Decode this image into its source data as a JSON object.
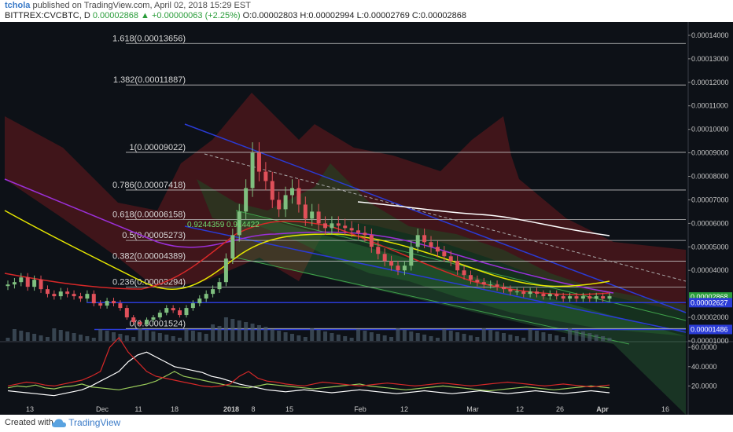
{
  "header": {
    "author": "tchola",
    "published": "published on TradingView.com, April 02, 2018 15:29 EST",
    "symbol": "BITTREX:CVCBTC, D",
    "last": "0.00002868",
    "change": "+0.00000063 (+2.25%)",
    "ohlc": "O:0.00002803 H:0.00002994 L:0.00002769 C:0.00002868"
  },
  "footer": {
    "created_with": "Created with",
    "brand": "TradingView"
  },
  "colors": {
    "background": "#0d1117",
    "bull": "#7fbf7f",
    "bear": "#e0505a",
    "fib_line": "#c0c0c0",
    "sma_yellow": "#e6e600",
    "sma_purple": "#9b30d9",
    "sma_white": "#ffffff",
    "sma_red": "#d62828",
    "channel_blue": "#2a3bd6",
    "channel_green": "#3fa04a",
    "ichimoku_red": "#6b1a1e",
    "ichimoku_green": "#1e4a24"
  },
  "chart_data": [
    {
      "type": "line",
      "subtype": "candlestick",
      "y_scale": "linear",
      "ylim": [
        1e-05,
        0.000145
      ],
      "y_ticks": [
        "0.00014000",
        "0.00013000",
        "0.00012000",
        "0.00011000",
        "0.00010000",
        "0.00009000",
        "0.00008000",
        "0.00007000",
        "0.00006000",
        "0.00005000",
        "0.00004000",
        "0.00002000",
        "0.00001000"
      ],
      "x_ticks": [
        "13",
        "Dec",
        "11",
        "18",
        "2018",
        "8",
        "15",
        "Feb",
        "12",
        "Mar",
        "12",
        "26",
        "Apr",
        "16"
      ],
      "fib_levels": [
        {
          "label": "1.618(0.00013656)",
          "value": 0.00013656
        },
        {
          "label": "1.382(0.00011887)",
          "value": 0.00011887
        },
        {
          "label": "1(0.00009022)",
          "value": 9.022e-05
        },
        {
          "label": "0.786(0.00007418)",
          "value": 7.418e-05
        },
        {
          "label": "0.618(0.00006158)",
          "value": 6.158e-05
        },
        {
          "label": "0.5(0.00005273)",
          "value": 5.273e-05
        },
        {
          "label": "0.382(0.00004389)",
          "value": 4.389e-05
        },
        {
          "label": "0.236(0.00003294)",
          "value": 3.294e-05
        },
        {
          "label": "0(0.00001524)",
          "value": 1.524e-05
        }
      ],
      "price_badges": [
        {
          "label": "0.00002868",
          "value": 2.868e-05,
          "color": "#2a9d3a"
        },
        {
          "label": "0.00002627",
          "value": 2.627e-05,
          "color": "#2a3bd6"
        },
        {
          "label": "0.00001486",
          "value": 1.486e-05,
          "color": "#2a3bd6"
        }
      ],
      "annotation": "0.9244359 0.914422",
      "closes": [
        3.4e-05,
        3.5e-05,
        3.7e-05,
        3.3e-05,
        3.6e-05,
        3.2e-05,
        3e-05,
        2.9e-05,
        3.1e-05,
        3e-05,
        2.9e-05,
        2.8e-05,
        3e-05,
        2.6e-05,
        2.5e-05,
        2.7e-05,
        2.6e-05,
        2.4e-05,
        2e-05,
        1.8e-05,
        1.7e-05,
        1.9e-05,
        2e-05,
        2.2e-05,
        2.4e-05,
        2.3e-05,
        2.1e-05,
        2.4e-05,
        2.6e-05,
        2.8e-05,
        3e-05,
        3.2e-05,
        3.5e-05,
        4.5e-05,
        5.5e-05,
        6.5e-05,
        7.5e-05,
        9e-05,
        8.2e-05,
        7.8e-05,
        7e-05,
        6.6e-05,
        7.2e-05,
        7.5e-05,
        6.8e-05,
        6.2e-05,
        6.5e-05,
        6e-05,
        5.8e-05,
        6e-05,
        5.9e-05,
        5.8e-05,
        5.7e-05,
        5.6e-05,
        5.5e-05,
        5e-05,
        4.7e-05,
        4.4e-05,
        4.2e-05,
        4e-05,
        4.2e-05,
        5e-05,
        5.5e-05,
        5.2e-05,
        5e-05,
        4.8e-05,
        4.6e-05,
        4.4e-05,
        4e-05,
        3.8e-05,
        3.6e-05,
        3.5e-05,
        3.4e-05,
        3.4e-05,
        3.3e-05,
        3.2e-05,
        3.1e-05,
        3.1e-05,
        3e-05,
        3.1e-05,
        3e-05,
        2.9e-05,
        3e-05,
        2.9e-05,
        2.8e-05,
        2.9e-05,
        2.8e-05,
        2.9e-05,
        2.8e-05,
        2.9e-05,
        2.8e-05,
        2.9e-05
      ]
    },
    {
      "type": "line",
      "ylim": [
        0,
        65
      ],
      "y_ticks": [
        "60.0000",
        "40.0000",
        "20.0000"
      ],
      "series": [
        {
          "values": [
            18,
            20,
            19,
            21,
            18,
            17,
            19,
            20,
            22,
            19,
            18,
            17,
            16,
            18,
            20,
            22,
            25,
            30,
            35,
            30,
            28,
            26,
            24,
            22,
            20,
            19,
            18,
            20,
            22,
            21,
            20,
            19,
            18,
            17,
            18,
            19,
            20,
            21,
            22,
            20,
            19,
            18,
            17,
            16,
            17,
            18,
            19,
            20,
            19,
            18,
            17,
            16,
            15,
            16,
            17,
            18,
            19,
            18,
            17,
            16,
            17,
            18,
            19,
            20,
            19,
            18
          ]
        },
        {
          "values": [
            15,
            14,
            13,
            12,
            11,
            10,
            12,
            14,
            16,
            20,
            25,
            30,
            35,
            45,
            52,
            55,
            50,
            45,
            40,
            38,
            36,
            34,
            30,
            28,
            25,
            22,
            20,
            18,
            16,
            15,
            14,
            15,
            16,
            15,
            14,
            13,
            14,
            15,
            16,
            15,
            14,
            13,
            12,
            13,
            14,
            15,
            14,
            13,
            12,
            13,
            14,
            15,
            14,
            13,
            12,
            13,
            14,
            15,
            14,
            13,
            12,
            13,
            14,
            15,
            14,
            13
          ]
        },
        {
          "values": [
            20,
            22,
            24,
            23,
            21,
            20,
            22,
            24,
            26,
            30,
            35,
            60,
            70,
            55,
            45,
            35,
            30,
            28,
            26,
            24,
            22,
            20,
            19,
            20,
            22,
            30,
            35,
            28,
            25,
            24,
            22,
            21,
            20,
            22,
            24,
            23,
            22,
            21,
            20,
            21,
            22,
            23,
            22,
            21,
            20,
            21,
            22,
            23,
            22,
            21,
            20,
            21,
            22,
            23,
            24,
            23,
            22,
            21,
            20,
            21,
            22,
            21,
            20,
            19,
            20,
            21
          ]
        }
      ]
    }
  ]
}
